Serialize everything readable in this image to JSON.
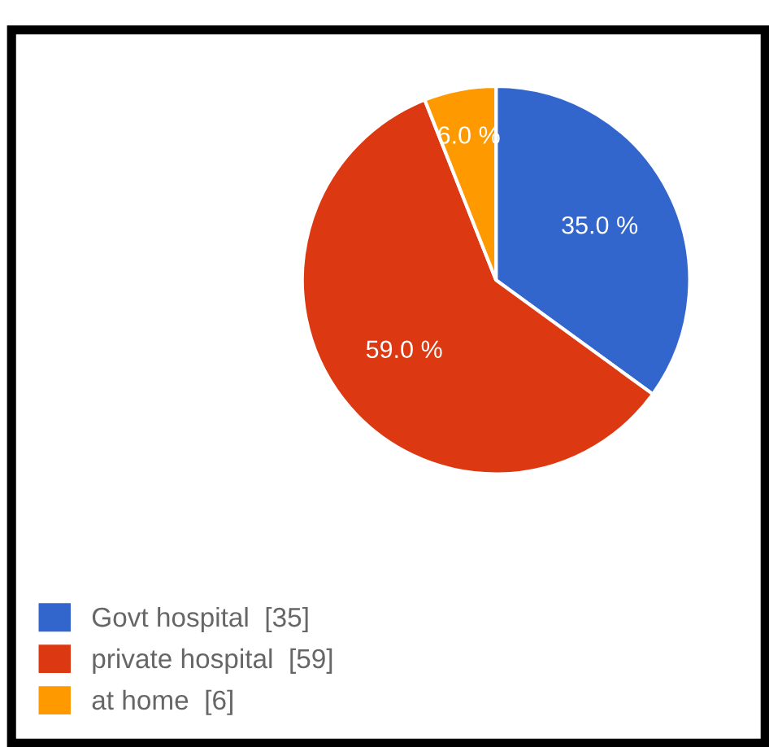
{
  "chart_data": {
    "type": "pie",
    "categories": [
      "Govt hospital  [35]",
      "private hospital  [59]",
      "at home  [6]"
    ],
    "values": [
      35,
      59,
      6
    ],
    "colors": [
      "#3366cc",
      "#dc3912",
      "#ff9900"
    ],
    "value_labels": [
      "35.0 %",
      "59.0 %",
      "6.0 %"
    ],
    "legend": "bottom left"
  }
}
